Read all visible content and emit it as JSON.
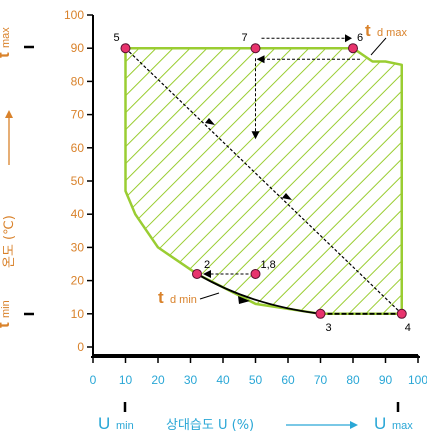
{
  "chart_data": {
    "type": "scatter",
    "title": "",
    "xlabel": "상대습도 U (%)",
    "ylabel": "온도 (℃)",
    "xlim": [
      0,
      100
    ],
    "ylim": [
      0,
      100
    ],
    "x_ticks": [
      0,
      10,
      20,
      30,
      40,
      50,
      60,
      70,
      80,
      90,
      100
    ],
    "y_ticks": [
      0,
      10,
      20,
      30,
      40,
      50,
      60,
      70,
      80,
      90,
      100
    ],
    "grid": false,
    "region_boundary": [
      [
        10,
        90
      ],
      [
        80,
        90
      ],
      [
        86,
        86
      ],
      [
        90,
        86
      ],
      [
        95,
        85
      ],
      [
        95,
        10
      ],
      [
        70,
        10
      ],
      [
        50,
        13
      ],
      [
        32,
        22
      ],
      [
        20,
        30
      ],
      [
        13,
        40
      ],
      [
        10,
        47
      ],
      [
        10,
        90
      ]
    ],
    "points": [
      {
        "label": "1,8",
        "x": 50,
        "y": 22
      },
      {
        "label": "2",
        "x": 32,
        "y": 22
      },
      {
        "label": "3",
        "x": 70,
        "y": 10
      },
      {
        "label": "4",
        "x": 95,
        "y": 10
      },
      {
        "label": "5",
        "x": 10,
        "y": 90
      },
      {
        "label": "6",
        "x": 80,
        "y": 90
      },
      {
        "label": "7",
        "x": 50,
        "y": 90
      }
    ],
    "path_segments": [
      {
        "from": "1,8",
        "to": "2",
        "style": "dashed"
      },
      {
        "from": "2",
        "to": "3",
        "style": "solid-curve"
      },
      {
        "from": "3",
        "to": "4",
        "style": "solid"
      },
      {
        "from": "4",
        "to": "5",
        "style": "dashed"
      },
      {
        "from": "5",
        "to": "6",
        "style": "solid"
      },
      {
        "from": "7",
        "to": "6",
        "style": "dashed"
      },
      {
        "from": "6",
        "to": "7",
        "style": "dashed-return"
      },
      {
        "from": "7",
        "to": "1,8",
        "style": "dashed"
      }
    ],
    "annotations": {
      "t_max": "t max",
      "t_min": "t min",
      "t_d_max": "t d max",
      "t_d_min": "t d min",
      "u_min": "U min",
      "u_max": "U max"
    },
    "colors": {
      "region": "#9acd32",
      "points": "#e8336d",
      "y_labels": "#d9822b",
      "x_labels": "#2aa7d6"
    }
  }
}
